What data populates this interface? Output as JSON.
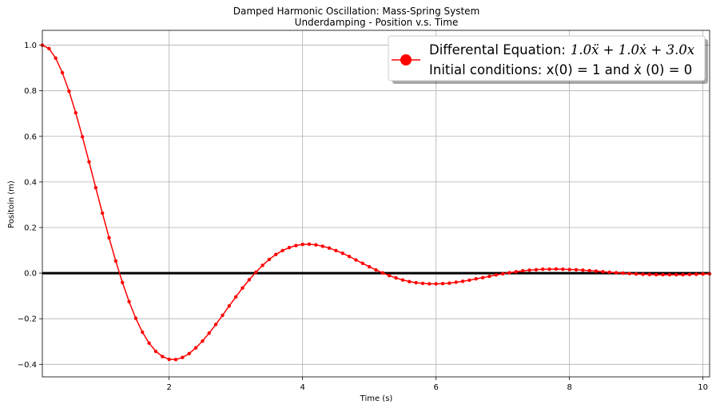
{
  "chart_data": {
    "type": "line",
    "title": "Damped Harmonic Oscillation: Mass-Spring System",
    "subtitle": "Underdamping - Position v.s. Time",
    "xlabel": "Time (s)",
    "ylabel": "Positoin (m)",
    "xlim": [
      0.1,
      10.1
    ],
    "ylim": [
      -0.455,
      1.065
    ],
    "xticks": [
      2,
      4,
      6,
      8,
      10
    ],
    "xtick_labels": [
      "2",
      "4",
      "6",
      "8",
      "10"
    ],
    "yticks": [
      -0.4,
      -0.2,
      0.0,
      0.2,
      0.4,
      0.6,
      0.8,
      1.0
    ],
    "ytick_labels": [
      "−0.4",
      "−0.2",
      "0.0",
      "0.2",
      "0.4",
      "0.6",
      "0.8",
      "1.0"
    ],
    "grid": true,
    "legend_position": "upper-right",
    "baseline_y": 0,
    "series": [
      {
        "color": "#ff0000",
        "marker": "circle",
        "x": [
          0.1,
          0.2,
          0.3,
          0.4,
          0.5,
          0.6,
          0.7,
          0.8,
          0.9,
          1.0,
          1.1,
          1.2,
          1.3,
          1.4,
          1.5,
          1.6,
          1.7,
          1.8,
          1.9,
          2.0,
          2.1,
          2.2,
          2.3,
          2.4,
          2.5,
          2.6,
          2.7,
          2.8,
          2.9,
          3.0,
          3.1,
          3.2,
          3.3,
          3.4,
          3.5,
          3.6,
          3.7,
          3.8,
          3.9,
          4.0,
          4.1,
          4.2,
          4.3,
          4.4,
          4.5,
          4.6,
          4.7,
          4.8,
          4.9,
          5.0,
          5.1,
          5.2,
          5.3,
          5.4,
          5.5,
          5.6,
          5.7,
          5.8,
          5.9,
          6.0,
          6.1,
          6.2,
          6.3,
          6.4,
          6.5,
          6.6,
          6.7,
          6.8,
          6.9,
          7.0,
          7.1,
          7.2,
          7.3,
          7.4,
          7.5,
          7.6,
          7.7,
          7.8,
          7.9,
          8.0,
          8.1,
          8.2,
          8.3,
          8.4,
          8.5,
          8.6,
          8.7,
          8.8,
          8.9,
          9.0,
          9.1,
          9.2,
          9.3,
          9.4,
          9.5,
          9.6,
          9.7,
          9.8,
          9.9,
          10.0,
          10.1
        ],
        "y": [
          1.0,
          0.985,
          0.943,
          0.879,
          0.798,
          0.703,
          0.598,
          0.488,
          0.375,
          0.263,
          0.155,
          0.053,
          -0.041,
          -0.125,
          -0.198,
          -0.259,
          -0.307,
          -0.343,
          -0.366,
          -0.378,
          -0.379,
          -0.37,
          -0.353,
          -0.328,
          -0.298,
          -0.263,
          -0.225,
          -0.185,
          -0.144,
          -0.104,
          -0.065,
          -0.029,
          0.004,
          0.034,
          0.06,
          0.082,
          0.099,
          0.112,
          0.121,
          0.126,
          0.127,
          0.124,
          0.118,
          0.11,
          0.099,
          0.087,
          0.073,
          0.058,
          0.043,
          0.028,
          0.014,
          0.001,
          -0.011,
          -0.021,
          -0.03,
          -0.037,
          -0.042,
          -0.045,
          -0.047,
          -0.047,
          -0.046,
          -0.044,
          -0.04,
          -0.036,
          -0.031,
          -0.025,
          -0.02,
          -0.014,
          -0.008,
          -0.003,
          0.002,
          0.006,
          0.01,
          0.013,
          0.015,
          0.017,
          0.017,
          0.018,
          0.017,
          0.016,
          0.015,
          0.013,
          0.011,
          0.009,
          0.006,
          0.004,
          0.002,
          -0.0,
          -0.002,
          -0.004,
          -0.005,
          -0.006,
          -0.007,
          -0.007,
          -0.007,
          -0.007,
          -0.007,
          -0.006,
          -0.005,
          -0.004,
          -0.003
        ]
      }
    ],
    "legend": {
      "line1_prefix": "Differental Equation:",
      "line1_math": "1.0ẍ + 1.0ẋ + 3.0x",
      "line2": "Initial conditions: x(0) = 1 and ẋ (0) = 0"
    }
  }
}
